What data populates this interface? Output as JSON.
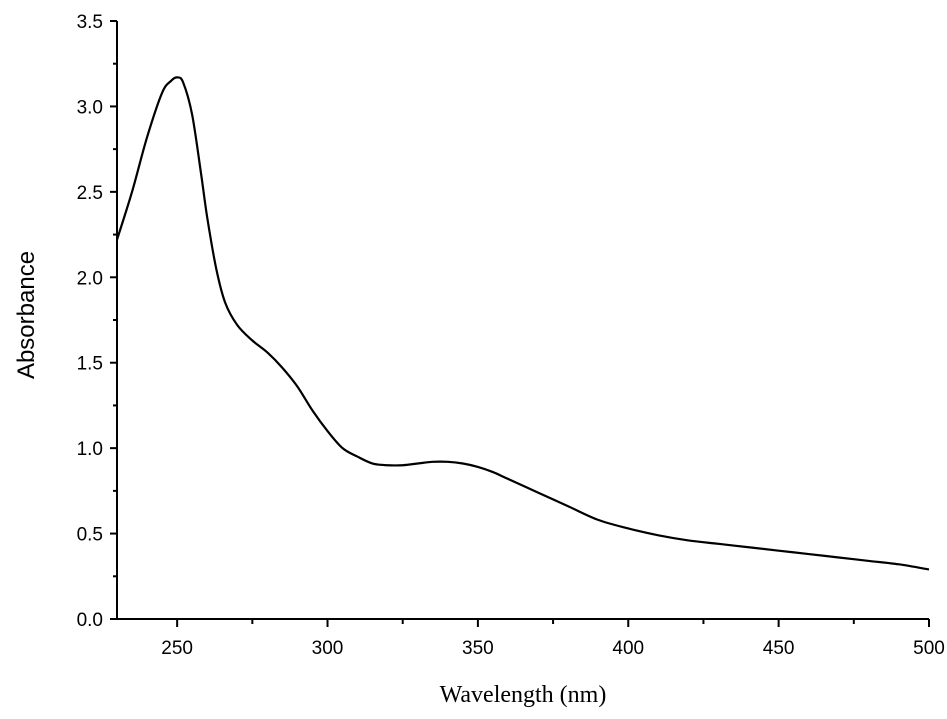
{
  "chart_data": {
    "type": "line",
    "title": "",
    "xlabel": "Wavelength (nm)",
    "ylabel": "Absorbance",
    "xlim": [
      230,
      500
    ],
    "ylim": [
      0,
      3.5
    ],
    "x_major_ticks": [
      250,
      300,
      350,
      400,
      450,
      500
    ],
    "x_tick_labels": [
      "250",
      "300",
      "350",
      "400",
      "450",
      "500"
    ],
    "y_major_ticks": [
      0.0,
      0.5,
      1.0,
      1.5,
      2.0,
      2.5,
      3.0,
      3.5
    ],
    "y_tick_labels": [
      "0.0",
      "0.5",
      "1.0",
      "1.5",
      "2.0",
      "2.5",
      "3.0",
      "3.5"
    ],
    "grid": false,
    "legend": "none",
    "series": [
      {
        "color": "#000000",
        "x": [
          230,
          235,
          240,
          245,
          248,
          250,
          252,
          255,
          258,
          260,
          263,
          266,
          270,
          275,
          280,
          285,
          290,
          295,
          300,
          305,
          310,
          315,
          320,
          325,
          330,
          335,
          340,
          345,
          350,
          355,
          360,
          370,
          380,
          390,
          400,
          410,
          420,
          430,
          440,
          450,
          460,
          470,
          480,
          490,
          500
        ],
        "y": [
          2.22,
          2.5,
          2.82,
          3.08,
          3.15,
          3.17,
          3.14,
          2.95,
          2.6,
          2.35,
          2.05,
          1.85,
          1.72,
          1.63,
          1.56,
          1.47,
          1.36,
          1.22,
          1.1,
          1.0,
          0.95,
          0.91,
          0.9,
          0.9,
          0.91,
          0.92,
          0.92,
          0.91,
          0.89,
          0.86,
          0.82,
          0.74,
          0.66,
          0.58,
          0.53,
          0.49,
          0.46,
          0.44,
          0.42,
          0.4,
          0.38,
          0.36,
          0.34,
          0.32,
          0.29
        ]
      }
    ]
  }
}
